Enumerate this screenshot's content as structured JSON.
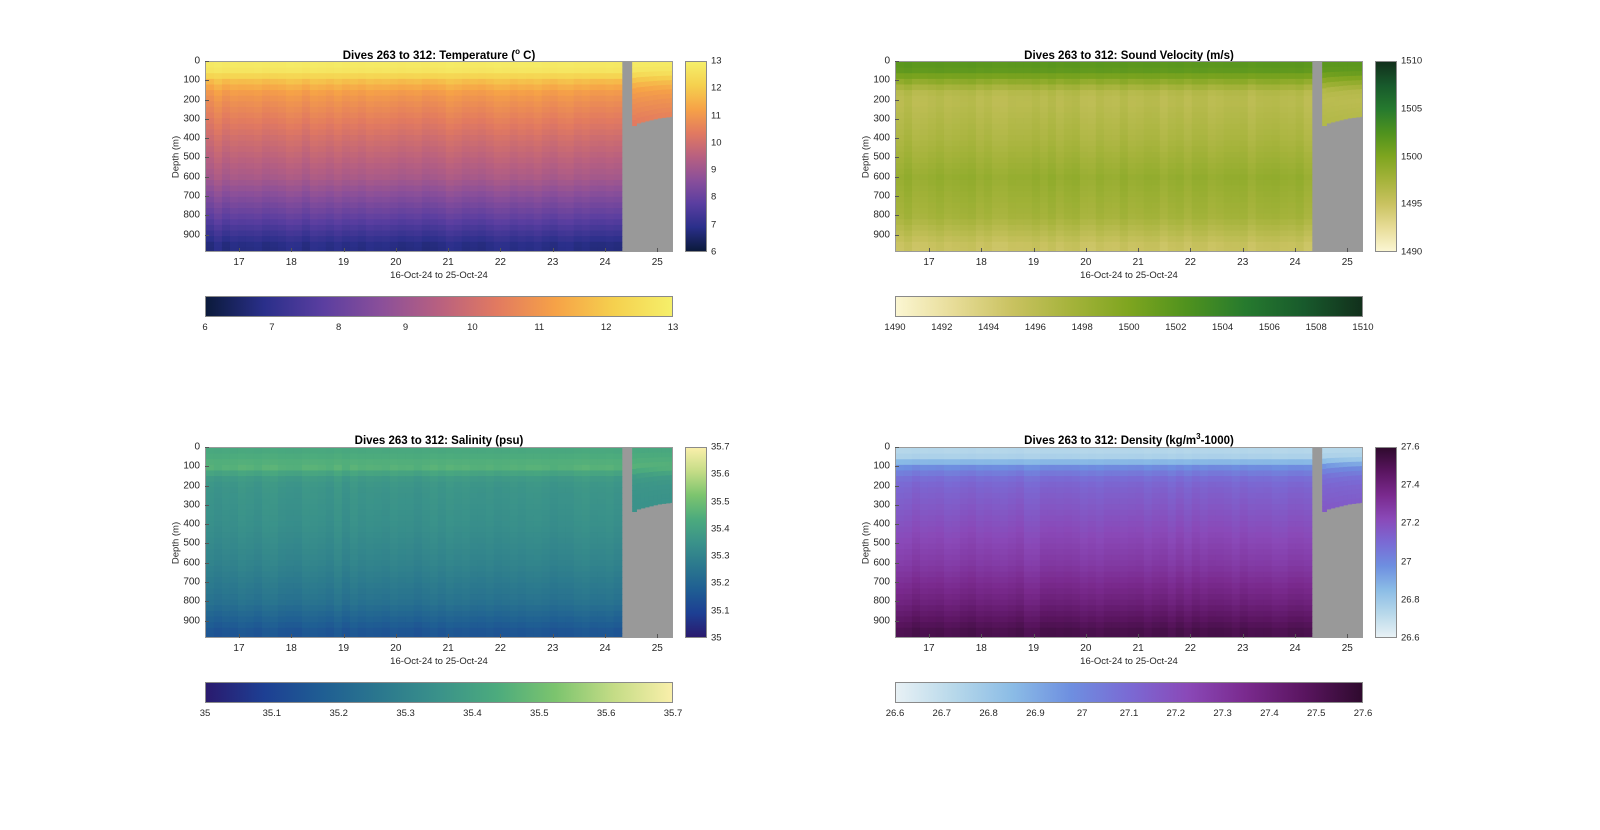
{
  "figure": {
    "panels": [
      {
        "id": "temperature",
        "title_prefix": "Dives 263 to 312: Temperature (",
        "title_sup": "o",
        "title_suffix": " C)",
        "ylabel": "Depth (m)",
        "xlabel": "16-Oct-24 to 25-Oct-24",
        "yticks": [
          "0",
          "100",
          "200",
          "300",
          "400",
          "500",
          "600",
          "700",
          "800",
          "900"
        ],
        "xticks": [
          "17",
          "18",
          "19",
          "20",
          "21",
          "22",
          "23",
          "24",
          "25"
        ],
        "colorbar_ticks": [
          "6",
          "7",
          "8",
          "9",
          "10",
          "11",
          "12",
          "13"
        ],
        "colormap": [
          "#0b1a3b",
          "#2a2f8a",
          "#5a3ea0",
          "#8a4f9a",
          "#b86080",
          "#e27a60",
          "#f6a247",
          "#f5d04e",
          "#f5ef6a"
        ],
        "missing_color": "#999999"
      },
      {
        "id": "sound_velocity",
        "title_prefix": "Dives 263 to 312: Sound Velocity (m/s)",
        "title_sup": "",
        "title_suffix": "",
        "ylabel": "Depth (m)",
        "xlabel": "16-Oct-24 to 25-Oct-24",
        "yticks": [
          "0",
          "100",
          "200",
          "300",
          "400",
          "500",
          "600",
          "700",
          "800",
          "900"
        ],
        "xticks": [
          "17",
          "18",
          "19",
          "20",
          "21",
          "22",
          "23",
          "24",
          "25"
        ],
        "colorbar_ticks": [
          "1490",
          "1492",
          "1494",
          "1496",
          "1498",
          "1500",
          "1502",
          "1504",
          "1506",
          "1508",
          "1510"
        ],
        "colorbar_vticks": [
          "1490",
          "1495",
          "1500",
          "1505",
          "1510"
        ],
        "colormap": [
          "#fbf6d2",
          "#e7dc97",
          "#c9c260",
          "#a5b33b",
          "#7ea51f",
          "#4f921e",
          "#267a2e",
          "#185a2c",
          "#12301c"
        ],
        "missing_color": "#999999"
      },
      {
        "id": "salinity",
        "title_prefix": "Dives 263 to 312: Salinity (psu)",
        "title_sup": "",
        "title_suffix": "",
        "ylabel": "Depth (m)",
        "xlabel": "16-Oct-24 to 25-Oct-24",
        "yticks": [
          "0",
          "100",
          "200",
          "300",
          "400",
          "500",
          "600",
          "700",
          "800",
          "900"
        ],
        "xticks": [
          "17",
          "18",
          "19",
          "20",
          "21",
          "22",
          "23",
          "24",
          "25"
        ],
        "colorbar_ticks": [
          "35",
          "35.1",
          "35.2",
          "35.3",
          "35.4",
          "35.5",
          "35.6",
          "35.7"
        ],
        "colormap": [
          "#2a1a6e",
          "#1d3f93",
          "#1f5e93",
          "#2b788e",
          "#3a928a",
          "#4cab7d",
          "#7cc46e",
          "#c4dc86",
          "#f9efaa"
        ],
        "missing_color": "#999999"
      },
      {
        "id": "density",
        "title_prefix": "Dives 263 to 312: Density (kg/m",
        "title_sup": "3",
        "title_suffix": "-1000)",
        "ylabel": "Depth (m)",
        "xlabel": "16-Oct-24 to 25-Oct-24",
        "yticks": [
          "0",
          "100",
          "200",
          "300",
          "400",
          "500",
          "600",
          "700",
          "800",
          "900"
        ],
        "xticks": [
          "17",
          "18",
          "19",
          "20",
          "21",
          "22",
          "23",
          "24",
          "25"
        ],
        "colorbar_ticks": [
          "26.6",
          "26.7",
          "26.8",
          "26.9",
          "27",
          "27.1",
          "27.2",
          "27.3",
          "27.4",
          "27.5",
          "27.6"
        ],
        "colorbar_vticks": [
          "26.6",
          "26.8",
          "27",
          "27.2",
          "27.4",
          "27.6"
        ],
        "colormap": [
          "#e8f1f5",
          "#b7d8ea",
          "#8bbce6",
          "#6e8fe0",
          "#7a6ad4",
          "#8a49b8",
          "#7a2a8e",
          "#5a1560",
          "#2f0a2e"
        ],
        "missing_color": "#999999"
      }
    ]
  },
  "chart_data": [
    {
      "type": "heatmap",
      "title": "Dives 263 to 312: Temperature (o C)",
      "xlabel": "16-Oct-24 to 25-Oct-24",
      "ylabel": "Depth (m)",
      "x_range": [
        16.35,
        25.3
      ],
      "y_range": [
        0,
        990
      ],
      "y_reversed": true,
      "color_range": [
        6,
        13
      ],
      "profile_depths": [
        0,
        50,
        100,
        150,
        200,
        400,
        600,
        800,
        950
      ],
      "profile_values": [
        12.9,
        12.7,
        11.8,
        11.2,
        10.9,
        10.0,
        9.2,
        7.9,
        6.8
      ],
      "gap_start": 24.3,
      "max_depth_after_gap": [
        [
          24.3,
          0
        ],
        [
          24.4,
          450
        ],
        [
          24.55,
          320
        ],
        [
          25.0,
          290
        ],
        [
          25.3,
          280
        ]
      ]
    },
    {
      "type": "heatmap",
      "title": "Dives 263 to 312: Sound Velocity (m/s)",
      "xlabel": "16-Oct-24 to 25-Oct-24",
      "ylabel": "Depth (m)",
      "x_range": [
        16.35,
        25.3
      ],
      "y_range": [
        0,
        990
      ],
      "y_reversed": true,
      "color_range": [
        1490,
        1510
      ],
      "profile_depths": [
        0,
        50,
        100,
        150,
        200,
        400,
        600,
        800,
        950
      ],
      "profile_values": [
        1502,
        1501.5,
        1499,
        1496.5,
        1496,
        1497,
        1498.5,
        1497.5,
        1495
      ],
      "gap_start": 24.3,
      "max_depth_after_gap": [
        [
          24.3,
          0
        ],
        [
          24.4,
          450
        ],
        [
          24.55,
          320
        ],
        [
          25.0,
          290
        ],
        [
          25.3,
          280
        ]
      ]
    },
    {
      "type": "heatmap",
      "title": "Dives 263 to 312: Salinity (psu)",
      "xlabel": "16-Oct-24 to 25-Oct-24",
      "ylabel": "Depth (m)",
      "x_range": [
        16.35,
        25.3
      ],
      "y_range": [
        0,
        990
      ],
      "y_reversed": true,
      "color_range": [
        35,
        35.7
      ],
      "profile_depths": [
        0,
        50,
        100,
        150,
        200,
        400,
        600,
        800,
        950
      ],
      "profile_values": [
        35.42,
        35.44,
        35.46,
        35.38,
        35.36,
        35.34,
        35.3,
        35.24,
        35.15
      ],
      "gap_start": 24.3,
      "max_depth_after_gap": [
        [
          24.3,
          0
        ],
        [
          24.4,
          450
        ],
        [
          24.55,
          320
        ],
        [
          25.0,
          290
        ],
        [
          25.3,
          280
        ]
      ]
    },
    {
      "type": "heatmap",
      "title": "Dives 263 to 312: Density (kg/m3-1000)",
      "xlabel": "16-Oct-24 to 25-Oct-24",
      "ylabel": "Depth (m)",
      "x_range": [
        16.35,
        25.3
      ],
      "y_range": [
        0,
        990
      ],
      "y_reversed": true,
      "color_range": [
        26.6,
        27.6
      ],
      "profile_depths": [
        0,
        50,
        100,
        150,
        200,
        400,
        600,
        800,
        950
      ],
      "profile_values": [
        26.72,
        26.76,
        26.98,
        27.08,
        27.12,
        27.2,
        27.28,
        27.4,
        27.52
      ],
      "gap_start": 24.3,
      "max_depth_after_gap": [
        [
          24.3,
          0
        ],
        [
          24.4,
          450
        ],
        [
          24.55,
          320
        ],
        [
          25.0,
          290
        ],
        [
          25.3,
          280
        ]
      ]
    }
  ]
}
